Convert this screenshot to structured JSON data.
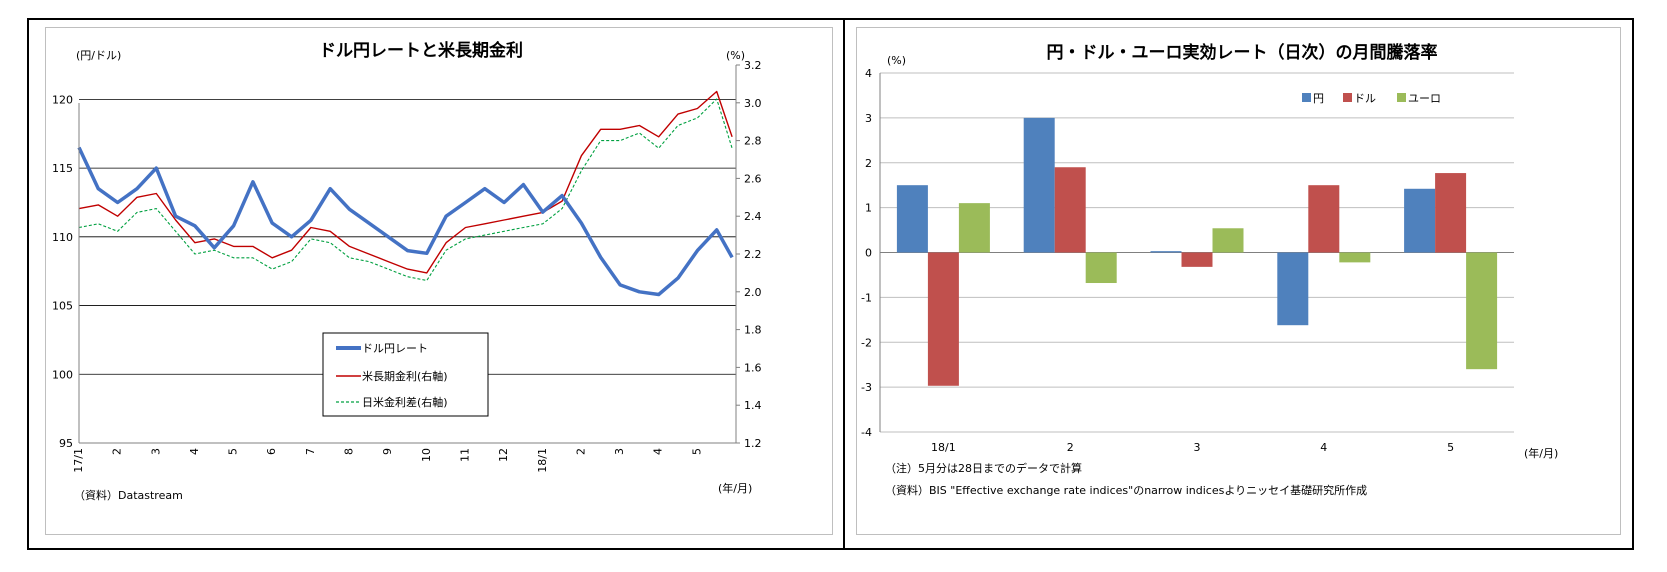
{
  "left_chart": {
    "title": "ドル円レートと米長期金利",
    "left_unit": "(円/ドル)",
    "right_unit": "(%)",
    "x_unit": "(年/月)",
    "source": "（資料）Datastream",
    "legend": [
      "ドル円レート",
      "米長期金利(右軸)",
      "日米金利差(右軸)"
    ],
    "colors": {
      "usdjpy": "#4472c4",
      "us_yield": "#c00000",
      "spread": "#00a040"
    }
  },
  "right_chart": {
    "title": "円・ドル・ユーロ実効レート（日次）の月間騰落率",
    "y_unit": "(%)",
    "x_unit": "(年/月)",
    "legend": [
      "円",
      "ドル",
      "ユーロ"
    ],
    "colors": {
      "yen": "#4f81bd",
      "dollar": "#c0504d",
      "euro": "#9bbb59"
    },
    "note1": "（注）5月分は28日までのデータで計算",
    "note2": "（資料）BIS \"Effective exchange rate indices\"のnarrow  indicesよりニッセイ基礎研究所作成"
  },
  "chart_data": [
    {
      "type": "line",
      "title": "ドル円レートと米長期金利",
      "xlabel": "(年/月)",
      "ylabel": "(円/ドル)",
      "ylabel_right": "(%)",
      "ylim": [
        95,
        122.5
      ],
      "ylim_right": [
        1.2,
        3.2
      ],
      "yticks": [
        95,
        100,
        105,
        110,
        115,
        120
      ],
      "yticks_right": [
        "1.2",
        "1.4",
        "1.6",
        "1.8",
        "2.0",
        "2.2",
        "2.4",
        "2.6",
        "2.8",
        "3.0",
        "3.2"
      ],
      "x_tick_labels": [
        "17/1",
        "2",
        "3",
        "4",
        "5",
        "6",
        "7",
        "8",
        "9",
        "10",
        "11",
        "12",
        "18/1",
        "2",
        "3",
        "4",
        "5"
      ],
      "x": [
        0,
        0.5,
        1,
        1.5,
        2,
        2.5,
        3,
        3.5,
        4,
        4.5,
        5,
        5.5,
        6,
        6.5,
        7,
        7.5,
        8,
        8.5,
        9,
        9.5,
        10,
        10.5,
        11,
        11.5,
        12,
        12.5,
        13,
        13.5,
        14,
        14.5,
        15,
        15.5,
        16,
        16.5,
        16.9
      ],
      "series": [
        {
          "name": "ドル円レート",
          "axis": "left",
          "values": [
            116.5,
            113.5,
            112.5,
            113.5,
            115.0,
            111.5,
            110.8,
            109.2,
            110.8,
            114.0,
            111.0,
            110.0,
            111.2,
            113.5,
            112.0,
            111.0,
            110.0,
            109.0,
            108.8,
            111.5,
            112.5,
            113.5,
            112.5,
            113.8,
            111.8,
            113.0,
            111.0,
            108.5,
            106.5,
            106.0,
            105.8,
            107.0,
            109.0,
            110.5,
            108.5
          ]
        },
        {
          "name": "米長期金利(右軸)",
          "axis": "right",
          "values": [
            2.44,
            2.46,
            2.4,
            2.5,
            2.52,
            2.38,
            2.26,
            2.28,
            2.24,
            2.24,
            2.18,
            2.22,
            2.34,
            2.32,
            2.24,
            2.2,
            2.16,
            2.12,
            2.1,
            2.26,
            2.34,
            2.36,
            2.38,
            2.4,
            2.42,
            2.48,
            2.72,
            2.86,
            2.86,
            2.88,
            2.82,
            2.94,
            2.97,
            3.06,
            2.82
          ]
        },
        {
          "name": "日米金利差(右軸)",
          "axis": "right",
          "values": [
            2.34,
            2.36,
            2.32,
            2.42,
            2.44,
            2.32,
            2.2,
            2.22,
            2.18,
            2.18,
            2.12,
            2.16,
            2.28,
            2.26,
            2.18,
            2.16,
            2.12,
            2.08,
            2.06,
            2.22,
            2.28,
            2.3,
            2.32,
            2.34,
            2.36,
            2.44,
            2.64,
            2.8,
            2.8,
            2.84,
            2.76,
            2.88,
            2.92,
            3.02,
            2.76
          ]
        }
      ]
    },
    {
      "type": "bar",
      "title": "円・ドル・ユーロ実効レート（日次）の月間騰落率",
      "xlabel": "(年/月)",
      "ylabel": "(%)",
      "ylim": [
        -4,
        4
      ],
      "yticks": [
        -4,
        -3,
        -2,
        -1,
        0,
        1,
        2,
        3,
        4
      ],
      "categories": [
        "18/1",
        "2",
        "3",
        "4",
        "5"
      ],
      "legend_position": "top-right",
      "series": [
        {
          "name": "円",
          "values": [
            1.5,
            3.0,
            0.03,
            -1.62,
            1.42
          ]
        },
        {
          "name": "ドル",
          "values": [
            -2.97,
            1.9,
            -0.32,
            1.5,
            1.77
          ]
        },
        {
          "name": "ユーロ",
          "values": [
            1.1,
            -0.68,
            0.54,
            -0.22,
            -2.6
          ]
        }
      ]
    }
  ]
}
